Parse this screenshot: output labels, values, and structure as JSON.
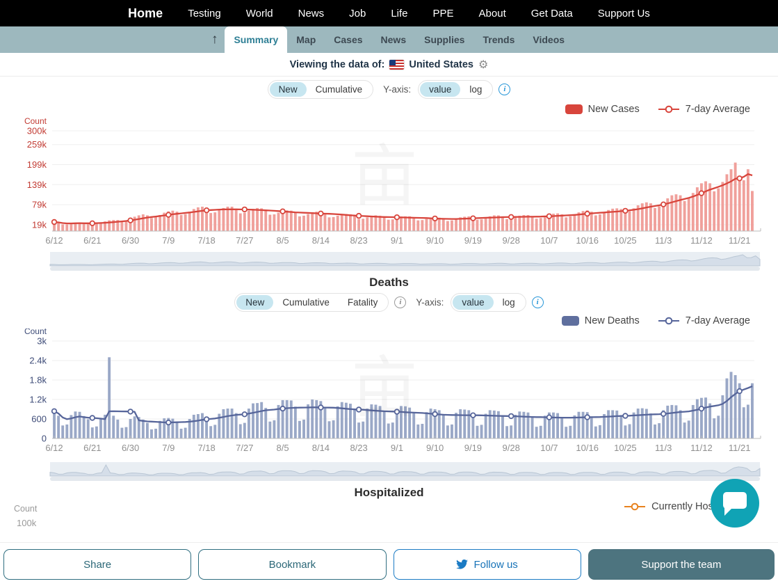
{
  "nav": {
    "items": [
      "Home",
      "Testing",
      "World",
      "News",
      "Job",
      "Life",
      "PPE",
      "About",
      "Get Data",
      "Support Us"
    ]
  },
  "tabbar": {
    "up_arrow": "↑",
    "active_tab": "Summary",
    "tabs": [
      "Summary",
      "Map",
      "Cases",
      "News",
      "Supplies",
      "Trends",
      "Videos"
    ]
  },
  "viewing": {
    "label": "Viewing the data of:",
    "country": "United States",
    "gear": "⚙"
  },
  "controls": {
    "cases": {
      "options": [
        "New",
        "Cumulative"
      ],
      "selected": "New",
      "yaxis_label": "Y-axis:",
      "yaxis_options": [
        "value",
        "log"
      ],
      "yaxis_selected": "value",
      "info": "i"
    },
    "deaths": {
      "options": [
        "New",
        "Cumulative",
        "Fatality"
      ],
      "selected": "New",
      "yaxis_label": "Y-axis:",
      "yaxis_options": [
        "value",
        "log"
      ],
      "yaxis_selected": "value",
      "info": "i"
    }
  },
  "sections": {
    "deaths_title": "Deaths",
    "hospitalized_title": "Hospitalized"
  },
  "legends": {
    "cases": {
      "bar": "New Cases",
      "line": "7-day Average"
    },
    "deaths": {
      "bar": "New Deaths",
      "line": "7-day Average"
    },
    "hospitalized": {
      "line": "Currently Hospitalized"
    }
  },
  "hospitalized_stub": {
    "ylabel": "Count",
    "first_visible_tick": "100k"
  },
  "footer": {
    "share": "Share",
    "bookmark": "Bookmark",
    "follow": "Follow us",
    "support": "Support the team"
  },
  "watermark": "亩",
  "colors": {
    "tabbar_bg": "#9db8be",
    "active_tab_text": "#2e7f95",
    "toggle_selected_bg": "#c7e6f0",
    "info_icon_blue": "#2796d8",
    "chat_bubble": "#10a3b5",
    "support_button_bg": "#4d747f",
    "follow_blue": "#1b7bc4",
    "button_teal_border": "#2f6e80"
  },
  "chart_data": [
    {
      "id": "cases",
      "type": "bar",
      "ylabel": "Count",
      "ymax": 300000,
      "x_range": [
        "6/12",
        "11/24"
      ],
      "x_tick_every": 9,
      "x_tick_labels": [
        "6/12",
        "6/21",
        "6/30",
        "7/9",
        "7/18",
        "7/27",
        "8/5",
        "8/14",
        "8/23",
        "9/1",
        "9/10",
        "9/19",
        "9/28",
        "10/7",
        "10/16",
        "10/25",
        "11/3",
        "11/12",
        "11/21"
      ],
      "yticks": [
        {
          "v": 19000,
          "label": "19k"
        },
        {
          "v": 79000,
          "label": "79k"
        },
        {
          "v": 139000,
          "label": "139k"
        },
        {
          "v": 199000,
          "label": "199k"
        },
        {
          "v": 259000,
          "label": "259k"
        },
        {
          "v": 300000,
          "label": "300k"
        }
      ],
      "axis_label_color": "#c23b33",
      "series": [
        {
          "name": "New Cases",
          "type": "bar",
          "color": "#f0a09b",
          "values": [
            27000,
            25000,
            20000,
            20000,
            23000,
            25000,
            26000,
            25000,
            24000,
            21000,
            22000,
            26000,
            29000,
            32000,
            33000,
            33000,
            28000,
            31000,
            37000,
            43000,
            47000,
            50000,
            47000,
            39000,
            42000,
            48000,
            55000,
            59000,
            61000,
            58000,
            48000,
            51000,
            58000,
            66000,
            71000,
            73000,
            67000,
            54000,
            56000,
            63000,
            69000,
            73000,
            73000,
            67000,
            53000,
            55000,
            61000,
            66000,
            69000,
            68000,
            62000,
            49000,
            50000,
            55000,
            60000,
            62000,
            61000,
            56000,
            44000,
            46000,
            51000,
            56000,
            58000,
            57000,
            52000,
            41000,
            42000,
            46000,
            49000,
            51000,
            50000,
            46000,
            36000,
            37000,
            41000,
            45000,
            47000,
            46000,
            43000,
            34000,
            35000,
            39000,
            43000,
            44000,
            44000,
            40000,
            32000,
            33000,
            36000,
            39000,
            40000,
            40000,
            37000,
            30000,
            32000,
            36000,
            41000,
            43000,
            44000,
            41000,
            34000,
            35000,
            40000,
            44000,
            47000,
            47000,
            44000,
            36000,
            37000,
            41000,
            46000,
            48000,
            48000,
            45000,
            37000,
            39000,
            44000,
            49000,
            52000,
            53000,
            50000,
            41000,
            44000,
            50000,
            56000,
            60000,
            62000,
            58000,
            47000,
            50000,
            56000,
            63000,
            67000,
            68000,
            66000,
            55000,
            59000,
            68000,
            77000,
            83000,
            86000,
            83000,
            69000,
            74000,
            86000,
            98000,
            107000,
            110000,
            107000,
            90000,
            98000,
            114000,
            131000,
            143000,
            149000,
            143000,
            119000,
            128000,
            147000,
            170000,
            185000,
            205000,
            150000,
            152000,
            185000,
            120000
          ]
        },
        {
          "name": "7-day Average",
          "type": "line",
          "color": "#d8453c",
          "derived_from": "New Cases",
          "window": 7
        }
      ]
    },
    {
      "id": "deaths",
      "type": "bar",
      "ylabel": "Count",
      "ymax": 3000,
      "x_range": [
        "6/12",
        "11/24"
      ],
      "x_tick_every": 9,
      "x_tick_labels": [
        "6/12",
        "6/21",
        "6/30",
        "7/9",
        "7/18",
        "7/27",
        "8/5",
        "8/14",
        "8/23",
        "9/1",
        "9/10",
        "9/19",
        "9/28",
        "10/7",
        "10/16",
        "10/25",
        "11/3",
        "11/12",
        "11/21"
      ],
      "yticks": [
        {
          "v": 0,
          "label": "0"
        },
        {
          "v": 600,
          "label": "600"
        },
        {
          "v": 1200,
          "label": "1.2k"
        },
        {
          "v": 1800,
          "label": "1.8k"
        },
        {
          "v": 2400,
          "label": "2.4k"
        },
        {
          "v": 3000,
          "label": "3k"
        }
      ],
      "axis_label_color": "#3e4c78",
      "series": [
        {
          "name": "New Deaths",
          "type": "bar",
          "color": "#9aa8c7",
          "values": [
            840,
            700,
            400,
            430,
            720,
            830,
            820,
            690,
            590,
            340,
            370,
            630,
            730,
            2500,
            700,
            580,
            330,
            350,
            600,
            680,
            660,
            580,
            480,
            280,
            300,
            540,
            620,
            630,
            610,
            520,
            300,
            330,
            600,
            730,
            750,
            780,
            650,
            380,
            420,
            760,
            900,
            920,
            920,
            780,
            440,
            480,
            920,
            1080,
            1090,
            1120,
            940,
            520,
            560,
            1030,
            1180,
            1180,
            1170,
            980,
            540,
            580,
            1050,
            1200,
            1180,
            1150,
            960,
            530,
            560,
            990,
            1120,
            1100,
            1070,
            900,
            490,
            520,
            920,
            1050,
            1040,
            1000,
            840,
            460,
            490,
            880,
            1000,
            990,
            950,
            790,
            430,
            450,
            810,
            920,
            900,
            870,
            730,
            400,
            430,
            790,
            900,
            890,
            870,
            720,
            390,
            420,
            760,
            870,
            860,
            840,
            700,
            380,
            400,
            730,
            830,
            820,
            800,
            670,
            360,
            390,
            700,
            800,
            800,
            780,
            660,
            360,
            390,
            710,
            820,
            820,
            810,
            680,
            370,
            410,
            750,
            870,
            870,
            860,
            720,
            400,
            440,
            800,
            920,
            930,
            910,
            770,
            430,
            470,
            870,
            1010,
            1030,
            1020,
            870,
            490,
            550,
            1030,
            1210,
            1250,
            1260,
            1080,
            620,
            700,
            1330,
            1850,
            2050,
            1950,
            1700,
            960,
            1040,
            1700
          ]
        },
        {
          "name": "7-day Average",
          "type": "line",
          "color": "#56659a",
          "derived_from": "New Deaths",
          "window": 7
        }
      ]
    },
    {
      "id": "hospitalized",
      "type": "line",
      "ylabel": "Count",
      "visible_yticks": [
        "100k"
      ],
      "series": [
        {
          "name": "Currently Hospitalized",
          "type": "line",
          "color": "#e8821e"
        }
      ]
    }
  ]
}
